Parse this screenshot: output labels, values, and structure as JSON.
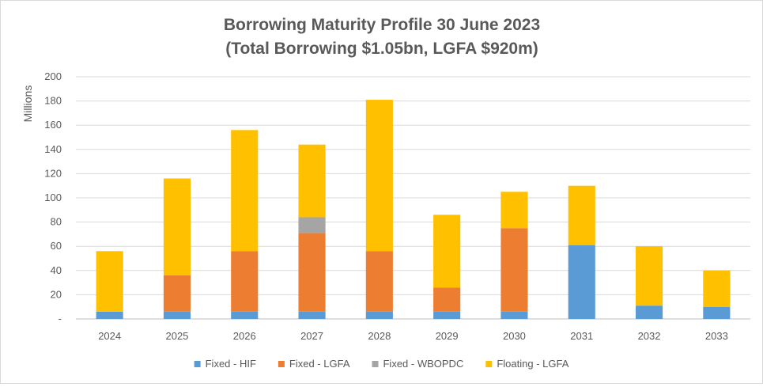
{
  "chart_data": {
    "type": "bar",
    "stacked": true,
    "title": "Borrowing Maturity Profile 30 June 2023",
    "subtitle": "(Total Borrowing $1.05bn, LGFA $920m)",
    "xlabel": "",
    "ylabel": "Millions",
    "ylim": [
      0,
      200
    ],
    "yticks": [
      0,
      20,
      40,
      60,
      80,
      100,
      120,
      140,
      160,
      180,
      200
    ],
    "ytick_labels": [
      "-",
      "20",
      "40",
      "60",
      "80",
      "100",
      "120",
      "140",
      "160",
      "180",
      "200"
    ],
    "grid": true,
    "legend_position": "bottom",
    "categories": [
      "2024",
      "2025",
      "2026",
      "2027",
      "2028",
      "2029",
      "2030",
      "2031",
      "2032",
      "2033"
    ],
    "series": [
      {
        "name": "Fixed - HIF",
        "color": "#5b9bd5",
        "values": [
          6,
          6,
          6,
          6,
          6,
          6,
          6,
          61,
          11,
          10
        ]
      },
      {
        "name": "Fixed - LGFA",
        "color": "#ed7d31",
        "values": [
          0,
          30,
          50,
          65,
          50,
          20,
          69,
          0,
          0,
          0
        ]
      },
      {
        "name": "Fixed - WBOPDC",
        "color": "#a5a5a5",
        "values": [
          0,
          0,
          0,
          13,
          0,
          0,
          0,
          0,
          0,
          0
        ]
      },
      {
        "name": "Floating - LGFA",
        "color": "#ffc000",
        "values": [
          50,
          80,
          100,
          60,
          125,
          60,
          30,
          49,
          49,
          30
        ]
      }
    ]
  }
}
